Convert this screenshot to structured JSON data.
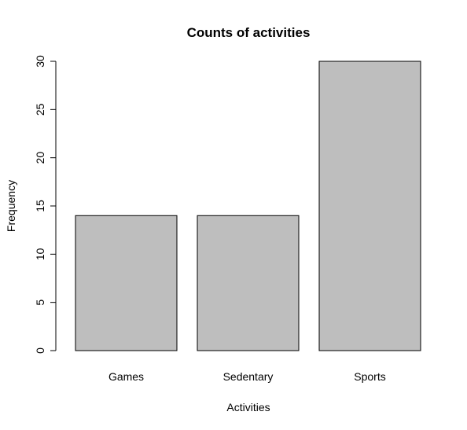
{
  "chart_data": {
    "type": "bar",
    "title": "Counts of activities",
    "xlabel": "Activities",
    "ylabel": "Frequency",
    "categories": [
      "Games",
      "Sedentary",
      "Sports"
    ],
    "values": [
      14,
      14,
      30
    ],
    "ylim": [
      0,
      30
    ],
    "yticks": [
      0,
      5,
      10,
      15,
      20,
      25,
      30
    ],
    "bar_color": "#bebebe",
    "grid": false,
    "legend": "none"
  }
}
